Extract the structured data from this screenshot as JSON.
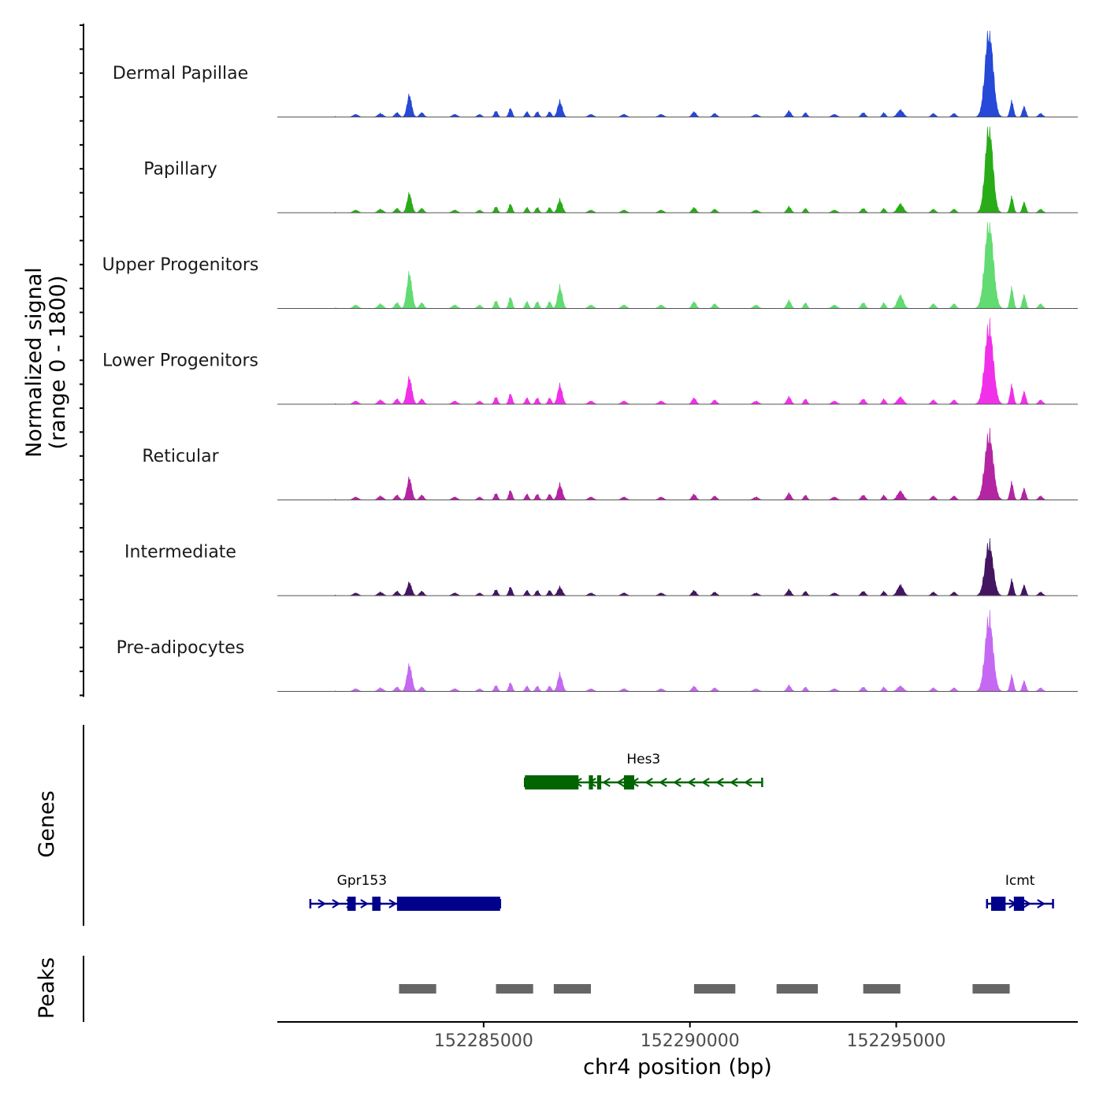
{
  "chart_data": {
    "type": "area",
    "title": "",
    "region": {
      "chrom": "chr4",
      "start": 152280000,
      "end": 152299400
    },
    "xlabel": "chr4 position (bp)",
    "xticks": [
      152285000,
      152290000,
      152295000
    ],
    "xtick_labels": [
      "152285000",
      "152290000",
      "152295000"
    ],
    "signal_panel": {
      "ylabel_line1": "Normalized signal",
      "ylabel_line2": "(range 0 - 1800)",
      "yrange": [
        0,
        1800
      ],
      "series": [
        {
          "name": "Dermal Papillae",
          "color": "#1a3fd6",
          "peaks": [
            [
              152283200,
              0.25,
              55
            ],
            [
              152286850,
              0.18,
              55
            ],
            [
              152297250,
              1.0,
              95
            ],
            [
              152295100,
              0.08,
              70
            ]
          ]
        },
        {
          "name": "Papillary",
          "color": "#1ea80c",
          "peaks": [
            [
              152283200,
              0.22,
              55
            ],
            [
              152286850,
              0.15,
              55
            ],
            [
              152297250,
              1.0,
              90
            ],
            [
              152295100,
              0.1,
              70
            ]
          ]
        },
        {
          "name": "Upper Progenitors",
          "color": "#5bd96b",
          "peaks": [
            [
              152283200,
              0.4,
              60
            ],
            [
              152286850,
              0.25,
              55
            ],
            [
              152297250,
              1.0,
              100
            ],
            [
              152295100,
              0.15,
              70
            ]
          ]
        },
        {
          "name": "Lower Progenitors",
          "color": "#f026e8",
          "peaks": [
            [
              152283200,
              0.3,
              60
            ],
            [
              152286850,
              0.22,
              55
            ],
            [
              152297250,
              0.9,
              100
            ],
            [
              152295100,
              0.08,
              70
            ]
          ]
        },
        {
          "name": "Reticular",
          "color": "#b0199e",
          "peaks": [
            [
              152283200,
              0.25,
              55
            ],
            [
              152286850,
              0.18,
              55
            ],
            [
              152297250,
              0.75,
              100
            ],
            [
              152295100,
              0.1,
              70
            ]
          ]
        },
        {
          "name": "Intermediate",
          "color": "#3a0a5a",
          "peaks": [
            [
              152283200,
              0.15,
              55
            ],
            [
              152286850,
              0.1,
              55
            ],
            [
              152297250,
              0.6,
              95
            ],
            [
              152295100,
              0.12,
              70
            ]
          ]
        },
        {
          "name": "Pre-adipocytes",
          "color": "#c261f2",
          "peaks": [
            [
              152283200,
              0.3,
              60
            ],
            [
              152286850,
              0.2,
              55
            ],
            [
              152297250,
              0.85,
              95
            ],
            [
              152295100,
              0.06,
              70
            ]
          ]
        }
      ]
    },
    "genes_panel": {
      "ylabel": "Genes",
      "genes": [
        {
          "name": "Hes3",
          "strand": "-",
          "start": 152286000,
          "end": 152291750,
          "color": "#006400",
          "exons": [
            [
              152286000,
              152287300
            ],
            [
              152287550,
              152287650
            ],
            [
              152287750,
              152287850
            ],
            [
              152288400,
              152288650
            ]
          ]
        },
        {
          "name": "Gpr153",
          "strand": "+",
          "start": 152280800,
          "end": 152285400,
          "color": "#00008b",
          "exons": [
            [
              152281700,
              152281900
            ],
            [
              152282300,
              152282500
            ],
            [
              152282900,
              152285400
            ]
          ]
        },
        {
          "name": "Icmt",
          "strand": "+",
          "start": 152297200,
          "end": 152298800,
          "color": "#00008b",
          "exons": [
            [
              152297300,
              152297650
            ],
            [
              152297850,
              152298100
            ]
          ]
        }
      ]
    },
    "peaks_panel": {
      "ylabel": "Peaks",
      "color": "#666666",
      "peaks": [
        [
          152282950,
          152283850
        ],
        [
          152285300,
          152286200
        ],
        [
          152286700,
          152287600
        ],
        [
          152290100,
          152291100
        ],
        [
          152292100,
          152293100
        ],
        [
          152294200,
          152295100
        ],
        [
          152296850,
          152297750
        ]
      ]
    }
  }
}
